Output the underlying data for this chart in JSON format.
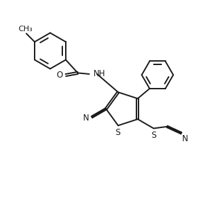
{
  "bg_color": "#ffffff",
  "line_color": "#1a1a1a",
  "line_width": 1.4,
  "font_size": 8.5,
  "figsize": [
    3.22,
    2.86
  ],
  "dpi": 100,
  "xlim": [
    0,
    10
  ],
  "ylim": [
    0,
    9
  ]
}
